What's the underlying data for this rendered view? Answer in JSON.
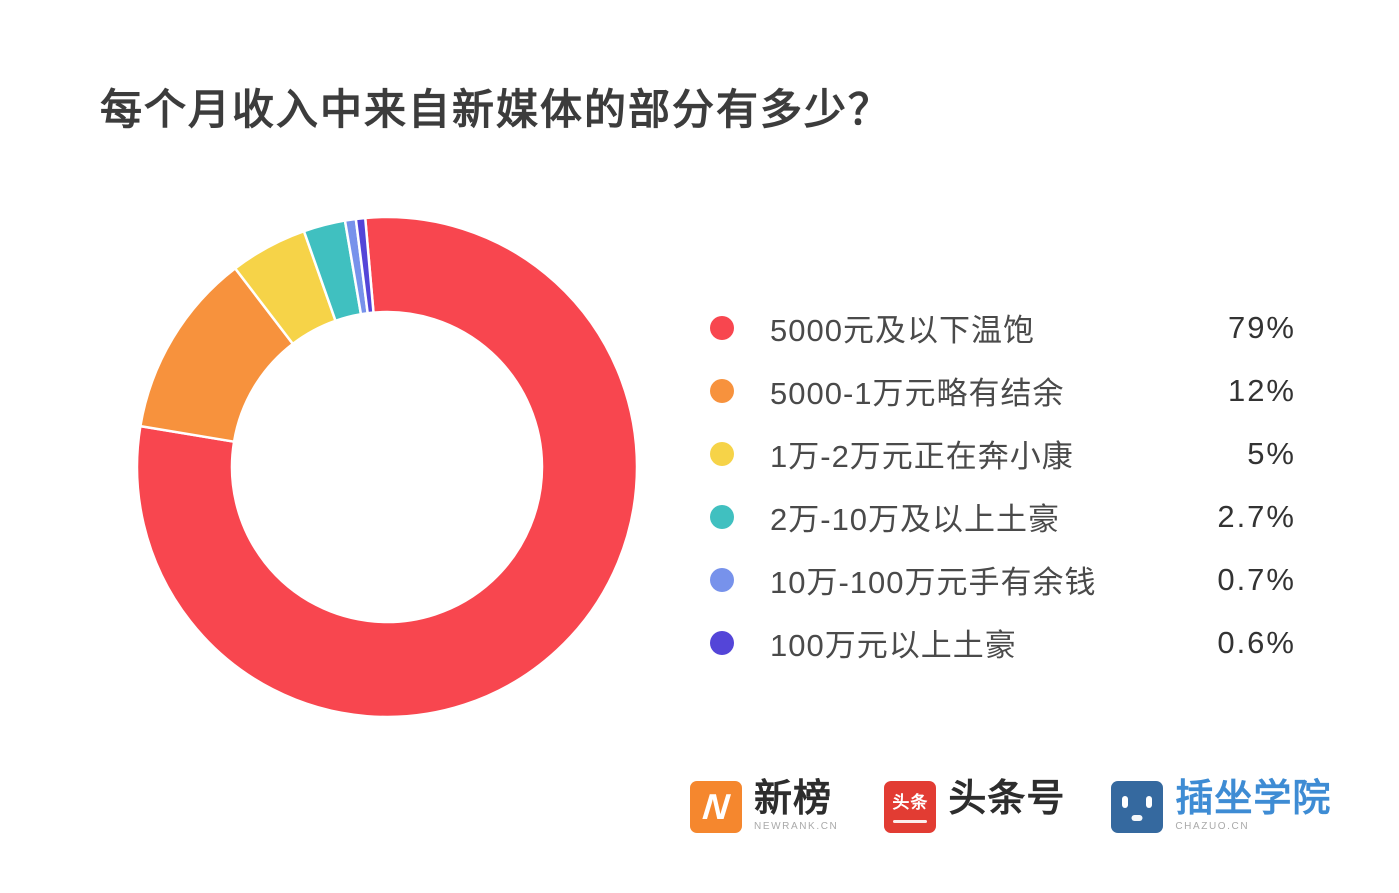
{
  "title": "每个月收入中来自新媒体的部分有多少？",
  "chart_data": {
    "type": "pie",
    "subtype": "donut",
    "title": "每个月收入中来自新媒体的部分有多少？",
    "start_angle_deg": -5,
    "direction": "clockwise",
    "inner_radius_ratio": 0.62,
    "legend_position": "right",
    "segments": [
      {
        "label": "5000元及以下温饱",
        "value": 79,
        "display": "79%",
        "color": "#F8464F"
      },
      {
        "label": "5000-1万元略有结余",
        "value": 12,
        "display": "12%",
        "color": "#F7923D"
      },
      {
        "label": "1万-2万元正在奔小康",
        "value": 5,
        "display": "5%",
        "color": "#F6D348"
      },
      {
        "label": "2万-10万及以上土豪",
        "value": 2.7,
        "display": "2.7%",
        "color": "#40C0C0"
      },
      {
        "label": "10万-100万元手有余钱",
        "value": 0.7,
        "display": "0.7%",
        "color": "#7792EB"
      },
      {
        "label": "100万元以上土豪",
        "value": 0.6,
        "display": "0.6%",
        "color": "#5445D8"
      }
    ]
  },
  "footer": {
    "brands": [
      {
        "id": "newrank",
        "logo_glyph": "N",
        "title": "新榜",
        "subtitle": "NEWRANK.CN",
        "logo_color": "#F5872E",
        "title_color": "#2d2d2d"
      },
      {
        "id": "toutiao",
        "logo_glyph": "头条",
        "title": "头条号",
        "subtitle": "",
        "logo_color": "#E23C33",
        "title_color": "#2d2d2d"
      },
      {
        "id": "chazuo",
        "logo_glyph": "",
        "title": "插坐学院",
        "subtitle": "CHAZUO.CN",
        "logo_color": "#35699F",
        "title_color": "#3E8CD4"
      }
    ]
  }
}
